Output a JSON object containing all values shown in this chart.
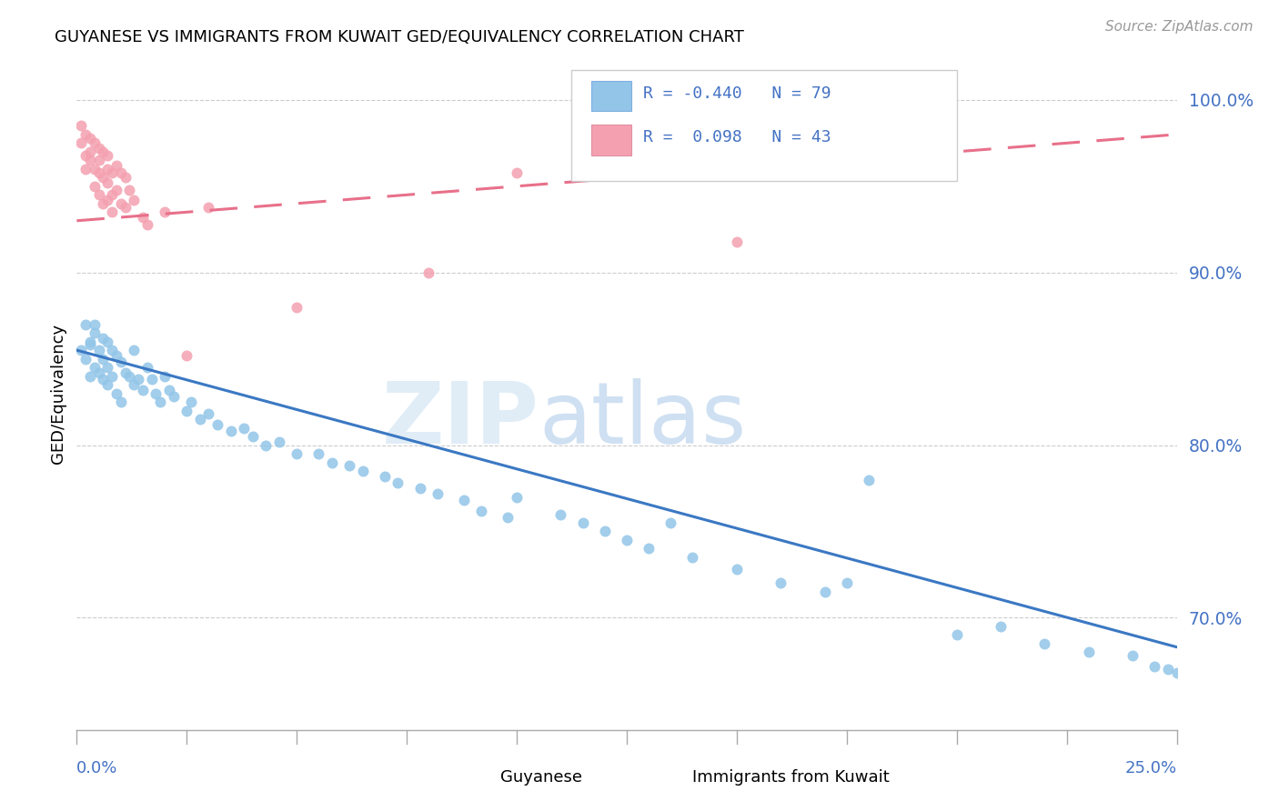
{
  "title": "GUYANESE VS IMMIGRANTS FROM KUWAIT GED/EQUIVALENCY CORRELATION CHART",
  "source": "Source: ZipAtlas.com",
  "ylabel": "GED/Equivalency",
  "xmin": 0.0,
  "xmax": 0.25,
  "ymin": 0.635,
  "ymax": 1.025,
  "yticks": [
    0.7,
    0.8,
    0.9,
    1.0
  ],
  "ytick_labels": [
    "70.0%",
    "80.0%",
    "90.0%",
    "100.0%"
  ],
  "blue_color": "#92C5E8",
  "pink_color": "#F4A0B0",
  "blue_line_color": "#3B78C3",
  "pink_line_color": "#E8708A",
  "legend_text_color": "#4472C4",
  "blue_trend_x0": 0.0,
  "blue_trend_x1": 0.25,
  "blue_trend_y0": 0.855,
  "blue_trend_y1": 0.683,
  "pink_trend_x0": 0.0,
  "pink_trend_x1": 0.25,
  "pink_trend_y0": 0.93,
  "pink_trend_y1": 0.98,
  "blue_scatter_x": [
    0.001,
    0.002,
    0.002,
    0.003,
    0.003,
    0.003,
    0.004,
    0.004,
    0.004,
    0.005,
    0.005,
    0.006,
    0.006,
    0.006,
    0.007,
    0.007,
    0.007,
    0.008,
    0.008,
    0.009,
    0.009,
    0.01,
    0.01,
    0.011,
    0.012,
    0.013,
    0.013,
    0.014,
    0.015,
    0.016,
    0.017,
    0.018,
    0.019,
    0.02,
    0.021,
    0.022,
    0.025,
    0.026,
    0.028,
    0.03,
    0.032,
    0.035,
    0.038,
    0.04,
    0.043,
    0.046,
    0.05,
    0.055,
    0.058,
    0.062,
    0.065,
    0.07,
    0.073,
    0.078,
    0.082,
    0.088,
    0.092,
    0.098,
    0.1,
    0.11,
    0.115,
    0.12,
    0.125,
    0.13,
    0.14,
    0.15,
    0.16,
    0.17,
    0.18,
    0.2,
    0.21,
    0.22,
    0.23,
    0.24,
    0.245,
    0.248,
    0.25,
    0.175,
    0.135
  ],
  "blue_scatter_y": [
    0.855,
    0.87,
    0.85,
    0.86,
    0.84,
    0.858,
    0.865,
    0.845,
    0.87,
    0.855,
    0.842,
    0.862,
    0.85,
    0.838,
    0.86,
    0.845,
    0.835,
    0.855,
    0.84,
    0.852,
    0.83,
    0.848,
    0.825,
    0.842,
    0.84,
    0.835,
    0.855,
    0.838,
    0.832,
    0.845,
    0.838,
    0.83,
    0.825,
    0.84,
    0.832,
    0.828,
    0.82,
    0.825,
    0.815,
    0.818,
    0.812,
    0.808,
    0.81,
    0.805,
    0.8,
    0.802,
    0.795,
    0.795,
    0.79,
    0.788,
    0.785,
    0.782,
    0.778,
    0.775,
    0.772,
    0.768,
    0.762,
    0.758,
    0.77,
    0.76,
    0.755,
    0.75,
    0.745,
    0.74,
    0.735,
    0.728,
    0.72,
    0.715,
    0.78,
    0.69,
    0.695,
    0.685,
    0.68,
    0.678,
    0.672,
    0.67,
    0.668,
    0.72,
    0.755
  ],
  "pink_scatter_x": [
    0.001,
    0.001,
    0.002,
    0.002,
    0.002,
    0.003,
    0.003,
    0.003,
    0.004,
    0.004,
    0.004,
    0.005,
    0.005,
    0.005,
    0.005,
    0.006,
    0.006,
    0.006,
    0.007,
    0.007,
    0.007,
    0.007,
    0.008,
    0.008,
    0.008,
    0.009,
    0.009,
    0.01,
    0.01,
    0.011,
    0.011,
    0.012,
    0.013,
    0.015,
    0.016,
    0.05,
    0.08,
    0.1,
    0.12,
    0.15,
    0.025,
    0.02,
    0.03
  ],
  "pink_scatter_y": [
    0.985,
    0.975,
    0.98,
    0.968,
    0.96,
    0.978,
    0.965,
    0.97,
    0.975,
    0.96,
    0.95,
    0.972,
    0.958,
    0.965,
    0.945,
    0.97,
    0.955,
    0.94,
    0.968,
    0.952,
    0.942,
    0.96,
    0.958,
    0.945,
    0.935,
    0.962,
    0.948,
    0.958,
    0.94,
    0.955,
    0.938,
    0.948,
    0.942,
    0.932,
    0.928,
    0.88,
    0.9,
    0.958,
    0.97,
    0.918,
    0.852,
    0.935,
    0.938
  ]
}
